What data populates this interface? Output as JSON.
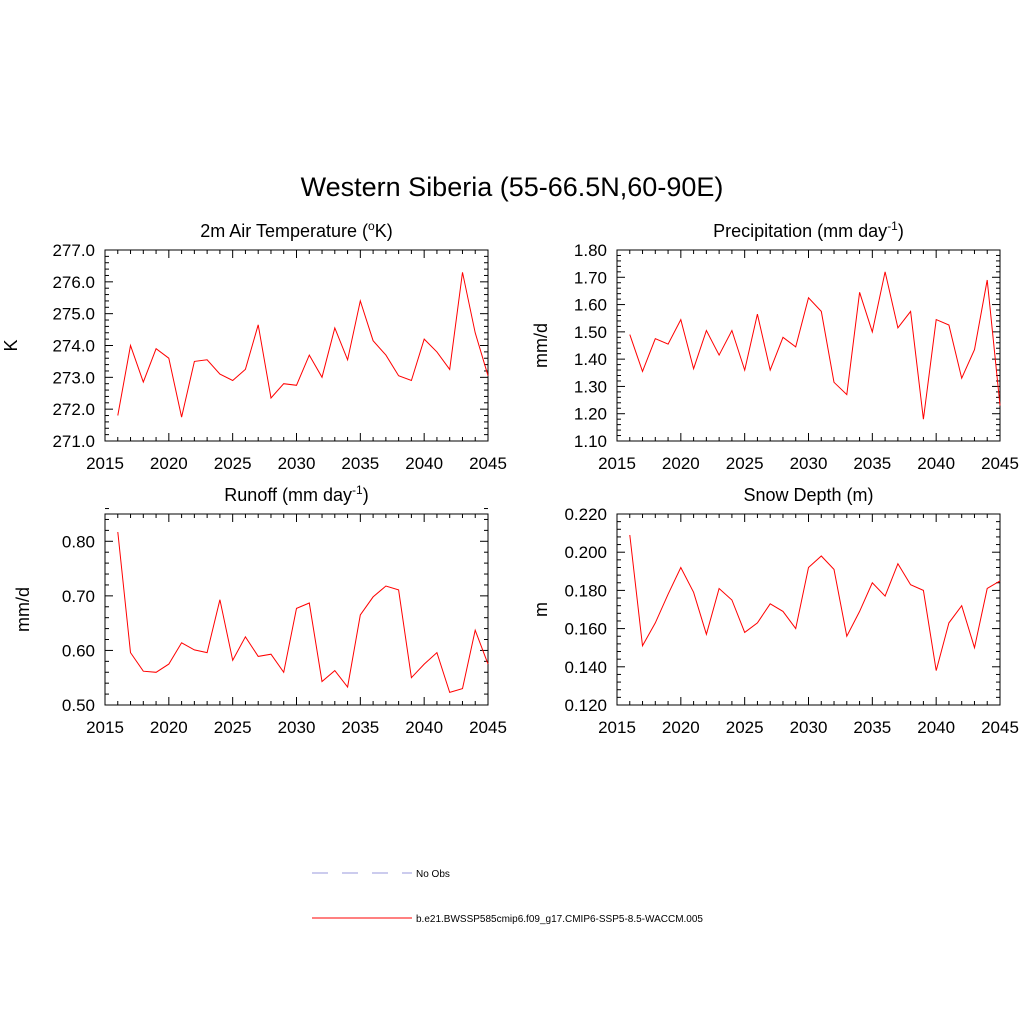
{
  "main_title": "Western Siberia (55-66.5N,60-90E)",
  "legend": {
    "items": [
      {
        "label": "No Obs",
        "color": "#9999dd",
        "style": "dashed"
      },
      {
        "label": "b.e21.BWSSP585cmip6.f09_g17.CMIP6-SSP5-8.5-WACCM.005",
        "color": "#ff0000",
        "style": "solid"
      }
    ]
  },
  "chart_data": [
    {
      "type": "line",
      "title": "2m Air Temperature (",
      "title_sup": "o",
      "title_after": "K)",
      "ylabel": "K",
      "xlim": [
        2015,
        2045
      ],
      "ylim": [
        271.0,
        277.0
      ],
      "yticks": [
        "271.0",
        "272.0",
        "273.0",
        "274.0",
        "275.0",
        "276.0",
        "277.0"
      ],
      "xticks": [
        "2015",
        "2020",
        "2025",
        "2030",
        "2035",
        "2040",
        "2045"
      ],
      "color": "#ff0000",
      "x": [
        2016,
        2017,
        2018,
        2019,
        2020,
        2021,
        2022,
        2023,
        2024,
        2025,
        2026,
        2027,
        2028,
        2029,
        2030,
        2031,
        2032,
        2033,
        2034,
        2035,
        2036,
        2037,
        2038,
        2039,
        2040,
        2041,
        2042,
        2043,
        2044,
        2045
      ],
      "values": [
        271.8,
        274.0,
        272.85,
        273.9,
        273.6,
        271.75,
        273.5,
        273.55,
        273.1,
        272.9,
        273.25,
        274.65,
        272.35,
        272.8,
        272.75,
        273.7,
        273.0,
        274.55,
        273.55,
        275.4,
        274.15,
        273.7,
        273.05,
        272.9,
        274.2,
        273.8,
        273.25,
        276.3,
        274.4,
        273.05
      ]
    },
    {
      "type": "line",
      "title": "Precipitation (mm day",
      "title_sup": "-1",
      "title_after": ")",
      "ylabel": "mm/d",
      "xlim": [
        2015,
        2045
      ],
      "ylim": [
        1.1,
        1.8
      ],
      "yticks": [
        "1.10",
        "1.20",
        "1.30",
        "1.40",
        "1.50",
        "1.60",
        "1.70",
        "1.80"
      ],
      "xticks": [
        "2015",
        "2020",
        "2025",
        "2030",
        "2035",
        "2040",
        "2045"
      ],
      "color": "#ff0000",
      "x": [
        2016,
        2017,
        2018,
        2019,
        2020,
        2021,
        2022,
        2023,
        2024,
        2025,
        2026,
        2027,
        2028,
        2029,
        2030,
        2031,
        2032,
        2033,
        2034,
        2035,
        2036,
        2037,
        2038,
        2039,
        2040,
        2041,
        2042,
        2043,
        2044,
        2045
      ],
      "values": [
        1.49,
        1.355,
        1.475,
        1.455,
        1.545,
        1.365,
        1.505,
        1.415,
        1.505,
        1.36,
        1.565,
        1.36,
        1.48,
        1.445,
        1.625,
        1.575,
        1.315,
        1.27,
        1.645,
        1.5,
        1.72,
        1.515,
        1.575,
        1.18,
        1.545,
        1.525,
        1.33,
        1.435,
        1.69,
        1.23
      ]
    },
    {
      "type": "line",
      "title": "Runoff (mm day",
      "title_sup": "-1",
      "title_after": ")",
      "ylabel": "mm/d",
      "xlim": [
        2015,
        2045
      ],
      "ylim": [
        0.5,
        0.85
      ],
      "yticks": [
        "0.50",
        "0.60",
        "0.70",
        "0.80"
      ],
      "ytick_values": [
        0.5,
        0.6,
        0.7,
        0.8
      ],
      "xticks": [
        "2015",
        "2020",
        "2025",
        "2030",
        "2035",
        "2040",
        "2045"
      ],
      "color": "#ff0000",
      "x": [
        2016,
        2017,
        2018,
        2019,
        2020,
        2021,
        2022,
        2023,
        2024,
        2025,
        2026,
        2027,
        2028,
        2029,
        2030,
        2031,
        2032,
        2033,
        2034,
        2035,
        2036,
        2037,
        2038,
        2039,
        2040,
        2041,
        2042,
        2043,
        2044,
        2045
      ],
      "values": [
        0.817,
        0.596,
        0.562,
        0.56,
        0.575,
        0.614,
        0.601,
        0.596,
        0.693,
        0.582,
        0.625,
        0.589,
        0.593,
        0.56,
        0.677,
        0.687,
        0.543,
        0.563,
        0.533,
        0.665,
        0.698,
        0.718,
        0.711,
        0.55,
        0.575,
        0.596,
        0.523,
        0.53,
        0.637,
        0.575
      ]
    },
    {
      "type": "line",
      "title": "Snow Depth (m)",
      "title_sup": "",
      "title_after": "",
      "ylabel": "m",
      "xlim": [
        2015,
        2045
      ],
      "ylim": [
        0.12,
        0.22
      ],
      "yticks": [
        "0.120",
        "0.140",
        "0.160",
        "0.180",
        "0.200",
        "0.220"
      ],
      "xticks": [
        "2015",
        "2020",
        "2025",
        "2030",
        "2035",
        "2040",
        "2045"
      ],
      "color": "#ff0000",
      "x": [
        2016,
        2017,
        2018,
        2019,
        2020,
        2021,
        2022,
        2023,
        2024,
        2025,
        2026,
        2027,
        2028,
        2029,
        2030,
        2031,
        2032,
        2033,
        2034,
        2035,
        2036,
        2037,
        2038,
        2039,
        2040,
        2041,
        2042,
        2043,
        2044,
        2045
      ],
      "values": [
        0.209,
        0.151,
        0.163,
        0.178,
        0.192,
        0.179,
        0.157,
        0.181,
        0.175,
        0.158,
        0.163,
        0.173,
        0.169,
        0.16,
        0.192,
        0.198,
        0.191,
        0.156,
        0.169,
        0.184,
        0.177,
        0.194,
        0.183,
        0.18,
        0.138,
        0.163,
        0.172,
        0.15,
        0.181,
        0.185
      ]
    }
  ]
}
